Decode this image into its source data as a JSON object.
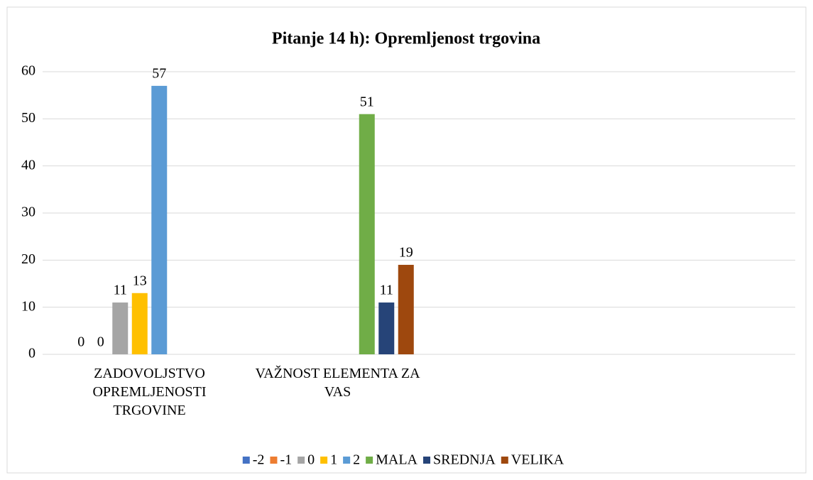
{
  "chart_data": {
    "type": "bar",
    "title": "Pitanje 14 h): Opremljenost trgovina",
    "categories": [
      "ZADOVOLJSTVO OPREMLJENOSTI TRGOVINE",
      "VAŽNOST ELEMENTA ZA VAS",
      null,
      null
    ],
    "series": [
      {
        "name": "-2",
        "color": "#4472c4",
        "values": [
          0,
          null,
          null,
          null
        ]
      },
      {
        "name": "-1",
        "color": "#ed7d31",
        "values": [
          0,
          null,
          null,
          null
        ]
      },
      {
        "name": "0",
        "color": "#a5a5a5",
        "values": [
          11,
          null,
          null,
          null
        ]
      },
      {
        "name": "1",
        "color": "#ffc000",
        "values": [
          13,
          null,
          null,
          null
        ]
      },
      {
        "name": "2",
        "color": "#5b9bd5",
        "values": [
          57,
          null,
          null,
          null
        ]
      },
      {
        "name": "MALA",
        "color": "#70ad47",
        "values": [
          null,
          51,
          null,
          null
        ]
      },
      {
        "name": "SREDNJA",
        "color": "#264478",
        "values": [
          null,
          11,
          null,
          null
        ]
      },
      {
        "name": "VELIKA",
        "color": "#9e480e",
        "values": [
          null,
          19,
          null,
          null
        ]
      }
    ],
    "ylim": [
      0,
      60
    ],
    "yticks": [
      0,
      10,
      20,
      30,
      40,
      50,
      60
    ],
    "grid": true,
    "legend": "bottom"
  }
}
